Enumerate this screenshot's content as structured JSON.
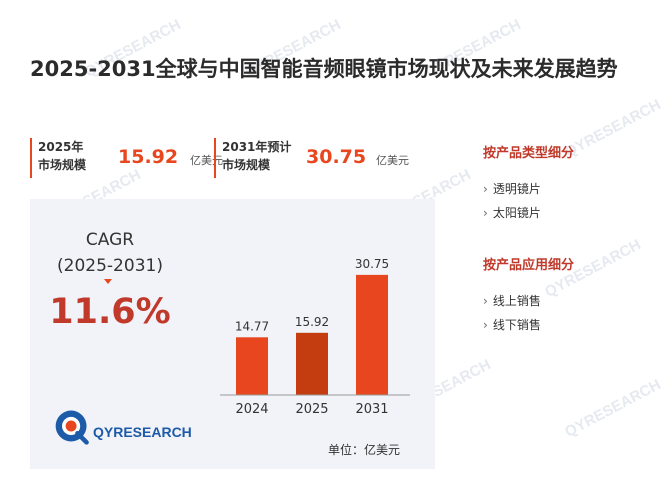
{
  "title": "2025-2031全球与中国智能音频眼镜市场现状及未来发展趋势",
  "stats": [
    {
      "label_line1": "2025年",
      "label_line2": "市场规模",
      "value": "15.92",
      "unit": "亿美元"
    },
    {
      "label_line1": "2031年预计",
      "label_line2": "市场规模",
      "value": "30.75",
      "unit": "亿美元"
    }
  ],
  "cagr": {
    "label": "CAGR",
    "period": "(2025-2031)",
    "value": "11.6%"
  },
  "logo": {
    "text": "QYRESEARCH"
  },
  "watermark": "QYRESEARCH",
  "unit_note": "单位：亿美元",
  "sidebar": {
    "product_type": {
      "heading": "按产品类型细分",
      "items": [
        "透明镜片",
        "太阳镜片"
      ]
    },
    "application": {
      "heading": "按产品应用细分",
      "items": [
        "线上销售",
        "线下销售"
      ]
    }
  },
  "colors": {
    "accent": "#e8461e",
    "accent_dark": "#c0392b",
    "bar_mid": "#c43d10",
    "panel": "#f1f3f8"
  },
  "chart_data": {
    "type": "bar",
    "categories": [
      "2024",
      "2025",
      "2031"
    ],
    "values": [
      14.77,
      15.92,
      30.75
    ],
    "data_labels": [
      "14.77",
      "15.92",
      "30.75"
    ],
    "title": "",
    "xlabel": "",
    "ylabel": "",
    "ylim": [
      0,
      32
    ],
    "grid": false,
    "legend": "none",
    "bar_colors": [
      "#e8461e",
      "#c43d10",
      "#e8461e"
    ]
  }
}
